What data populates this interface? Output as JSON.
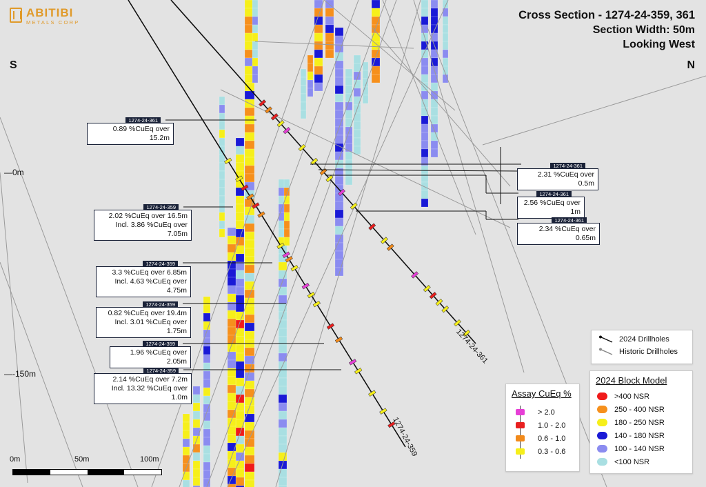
{
  "logo": {
    "name": "ABITIBI",
    "sub": "METALS CORP"
  },
  "title": {
    "line1": "Cross Section - 1274-24-359, 361",
    "line2": "Section Width: 50m",
    "line3": "Looking West"
  },
  "compass": {
    "left": "S",
    "right": "N"
  },
  "depth_labels": {
    "top": "0m",
    "bottom": "-150m"
  },
  "callouts": [
    {
      "tag": "1274-24-361",
      "lines": [
        "0.89 %CuEq over 15.2m"
      ]
    },
    {
      "tag": "1274-24-359",
      "lines": [
        "2.02 %CuEq over 16.5m",
        "Incl. 3.86 %CuEq over 7.05m"
      ]
    },
    {
      "tag": "1274-24-359",
      "lines": [
        "3.3 %CuEq over 6.85m",
        "Incl. 4.63 %CuEq over 4.75m"
      ]
    },
    {
      "tag": "1274-24-359",
      "lines": [
        "0.82 %CuEq over 19.4m",
        "Incl. 3.01 %CuEq over 1.75m"
      ]
    },
    {
      "tag": "1274-24-359",
      "lines": [
        "1.96 %CuEq over 2.05m"
      ]
    },
    {
      "tag": "1274-24-359",
      "lines": [
        "2.14 %CuEq over 7.2m",
        "Incl. 13.32 %CuEq over 1.0m"
      ]
    },
    {
      "tag": "1274-24-361",
      "lines": [
        "2.31 %CuEq over 0.5m"
      ]
    },
    {
      "tag": "1274-24-361",
      "lines": [
        "2.56 %CuEq over 1m"
      ]
    },
    {
      "tag": "1274-24-361",
      "lines": [
        "2.34 %CuEq over 0.65m"
      ]
    }
  ],
  "hole_labels": {
    "h361": "1274-24-361",
    "h359": "1274-24-359"
  },
  "legend_drillholes": {
    "current": "2024 Drillholes",
    "historic": "Historic Drillholes"
  },
  "legend_assay": {
    "title": "Assay CuEq %",
    "items": [
      {
        "label": "> 2.0",
        "color": "#e63fd6"
      },
      {
        "label": "1.0 - 2.0",
        "color": "#e81f1f"
      },
      {
        "label": "0.6 - 1.0",
        "color": "#f28a1a"
      },
      {
        "label": "0.3 - 0.6",
        "color": "#f6ef1a"
      }
    ]
  },
  "legend_block": {
    "title": "2024 Block Model",
    "items": [
      {
        "label": ">400 NSR",
        "color": "#f01a1a"
      },
      {
        "label": "250 - 400 NSR",
        "color": "#f6901c"
      },
      {
        "label": "180 - 250 NSR",
        "color": "#f6ef1a"
      },
      {
        "label": "140 - 180 NSR",
        "color": "#1a1ad6"
      },
      {
        "label": "100 - 140 NSR",
        "color": "#8b8cf0"
      },
      {
        "label": "<100 NSR",
        "color": "#a9dfe2"
      }
    ]
  },
  "scale": {
    "labels": [
      "0m",
      "50m",
      "100m"
    ]
  }
}
